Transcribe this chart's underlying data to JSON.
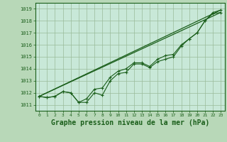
{
  "background_color": "#b8d8b8",
  "plot_bg_color": "#c8e8d8",
  "grid_color": "#99bb99",
  "line_color": "#1a5e1a",
  "marker_color": "#1a5e1a",
  "xlabel": "Graphe pression niveau de la mer (hPa)",
  "xlabel_fontsize": 7,
  "ylabel_values": [
    1011,
    1012,
    1013,
    1014,
    1015,
    1016,
    1017,
    1018,
    1019
  ],
  "xlim": [
    -0.5,
    23.5
  ],
  "ylim": [
    1010.5,
    1019.5
  ],
  "x_ticks": [
    0,
    1,
    2,
    3,
    4,
    5,
    6,
    7,
    8,
    9,
    10,
    11,
    12,
    13,
    14,
    15,
    16,
    17,
    18,
    19,
    20,
    21,
    22,
    23
  ],
  "series1": [
    1011.7,
    1011.6,
    1011.7,
    1012.1,
    1012.0,
    1011.2,
    1011.2,
    1012.0,
    1011.8,
    1013.0,
    1013.6,
    1013.7,
    1014.4,
    1014.4,
    1014.1,
    1014.6,
    1014.8,
    1015.0,
    1015.9,
    1016.5,
    1017.0,
    1018.0,
    1018.6,
    1018.7
  ],
  "series2": [
    1011.7,
    1011.6,
    1011.7,
    1012.1,
    1012.0,
    1011.2,
    1011.5,
    1012.3,
    1012.4,
    1013.3,
    1013.8,
    1014.0,
    1014.5,
    1014.5,
    1014.2,
    1014.8,
    1015.1,
    1015.2,
    1016.0,
    1016.5,
    1017.0,
    1018.0,
    1018.7,
    1018.9
  ],
  "series3_x": [
    0,
    23
  ],
  "series3_y": [
    1011.7,
    1018.9
  ],
  "series4_x": [
    0,
    23
  ],
  "series4_y": [
    1011.7,
    1018.7
  ]
}
